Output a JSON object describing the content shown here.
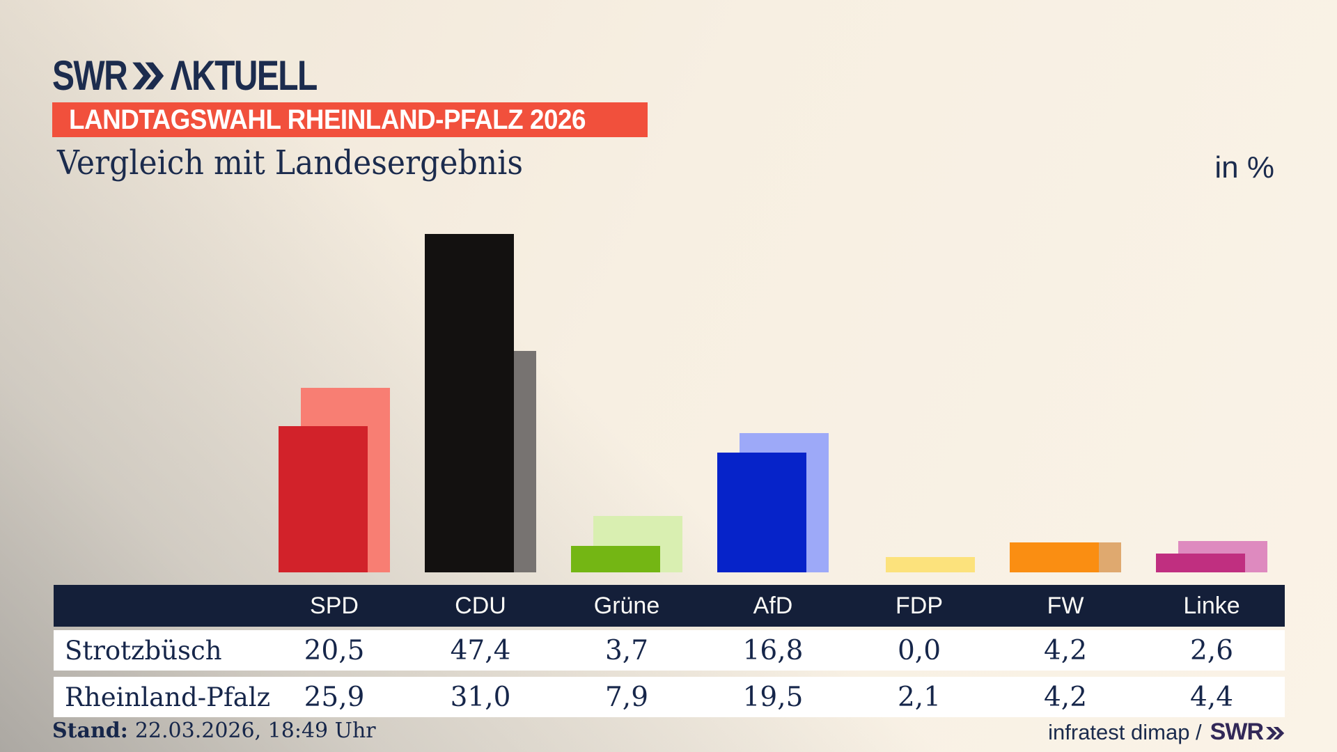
{
  "brand": {
    "swr": "SWR",
    "aktuell": "ΛKTUELL"
  },
  "badge": {
    "label": "LANDTAGSWAHL RHEINLAND-PFALZ 2026",
    "bg": "#f1503c"
  },
  "header": {
    "title": "Vergleich mit Landesergebnis",
    "unit_label": "in %"
  },
  "colors": {
    "navy_text": "#1b2b4d",
    "table_header_bg": "#141f39",
    "badge_red": "#f1503c",
    "footer_brand": "#322858"
  },
  "chart_data": {
    "type": "bar",
    "title": "Vergleich mit Landesergebnis",
    "unit": "%",
    "categories": [
      "SPD",
      "CDU",
      "Grüne",
      "AfD",
      "FDP",
      "FW",
      "Linke"
    ],
    "series": [
      {
        "name": "Strotzbüsch",
        "values": [
          20.5,
          47.4,
          3.7,
          16.8,
          0.0,
          4.2,
          2.6
        ]
      },
      {
        "name": "Rheinland-Pfalz",
        "values": [
          25.9,
          31.0,
          7.9,
          19.5,
          2.1,
          4.2,
          4.4
        ]
      }
    ],
    "party_colors": [
      {
        "party": "SPD",
        "front": "#d2222a",
        "back": "#f87e73"
      },
      {
        "party": "CDU",
        "front": "#131110",
        "back": "#777371"
      },
      {
        "party": "Grüne",
        "front": "#74b614",
        "back": "#d9efb1"
      },
      {
        "party": "AfD",
        "front": "#0623c9",
        "back": "#9da9f8"
      },
      {
        "party": "FDP",
        "front": "#f8d95c",
        "back": "#fce27c"
      },
      {
        "party": "FW",
        "front": "#fa8e12",
        "back": "#dfa96f"
      },
      {
        "party": "Linke",
        "front": "#c02f80",
        "back": "#de8abf"
      }
    ],
    "ylim": [
      0,
      50
    ],
    "grid": false,
    "legend": "values shown in table below chart"
  },
  "table": {
    "columns": [
      "SPD",
      "CDU",
      "Grüne",
      "AfD",
      "FDP",
      "FW",
      "Linke"
    ],
    "rows": [
      {
        "label": "Strotzbüsch",
        "cells": [
          "20,5",
          "47,4",
          "3,7",
          "16,8",
          "0,0",
          "4,2",
          "2,6"
        ]
      },
      {
        "label": "Rheinland-Pfalz",
        "cells": [
          "25,9",
          "31,0",
          "7,9",
          "19,5",
          "2,1",
          "4,2",
          "4,4"
        ]
      }
    ]
  },
  "footer": {
    "stand_label": "Stand:",
    "stand_value": "22.03.2026, 18:49 Uhr",
    "source_text": "infratest dimap /",
    "source_brand": "SWR"
  }
}
